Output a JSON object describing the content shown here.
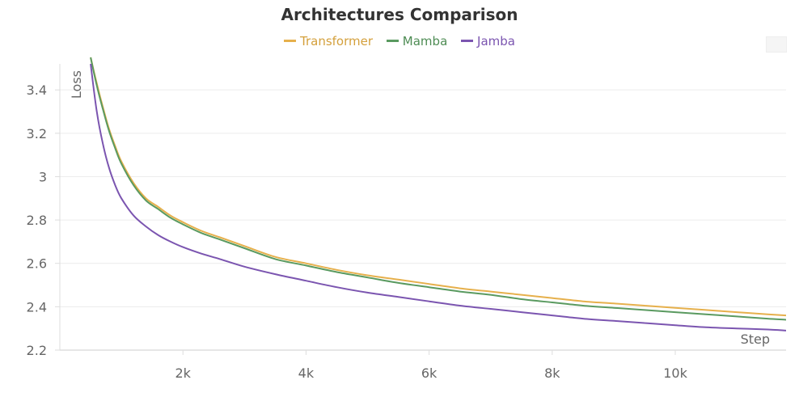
{
  "chart_data": {
    "type": "line",
    "title": "Architectures Comparison",
    "xlabel": "Step",
    "ylabel": "Loss",
    "xlim": [
      0,
      11800
    ],
    "ylim": [
      2.2,
      3.52
    ],
    "xticks": [
      2000,
      4000,
      6000,
      8000,
      10000
    ],
    "xtick_labels": [
      "2k",
      "4k",
      "6k",
      "8k",
      "10k"
    ],
    "yticks": [
      2.2,
      2.4,
      2.6,
      2.8,
      3.0,
      3.2,
      3.4
    ],
    "ytick_labels": [
      "2.2",
      "2.4",
      "2.6",
      "2.8",
      "3",
      "3.2",
      "3.4"
    ],
    "grid": "horizontal",
    "legend_position": "top-center",
    "x": [
      500,
      600,
      700,
      800,
      900,
      1000,
      1200,
      1400,
      1600,
      1800,
      2000,
      2300,
      2600,
      3000,
      3500,
      4000,
      4500,
      5000,
      5500,
      6000,
      6500,
      7000,
      7500,
      8000,
      8500,
      9000,
      9500,
      10000,
      10500,
      11000,
      11500,
      11800
    ],
    "series": [
      {
        "name": "Transformer",
        "color": "#e6b04c",
        "values": [
          3.55,
          3.43,
          3.32,
          3.22,
          3.14,
          3.07,
          2.97,
          2.9,
          2.86,
          2.82,
          2.79,
          2.75,
          2.72,
          2.68,
          2.63,
          2.6,
          2.57,
          2.545,
          2.525,
          2.505,
          2.485,
          2.47,
          2.455,
          2.44,
          2.425,
          2.415,
          2.405,
          2.395,
          2.385,
          2.375,
          2.365,
          2.36
        ]
      },
      {
        "name": "Mamba",
        "color": "#5a9a60",
        "values": [
          3.55,
          3.42,
          3.31,
          3.21,
          3.13,
          3.06,
          2.96,
          2.89,
          2.85,
          2.81,
          2.78,
          2.74,
          2.71,
          2.67,
          2.62,
          2.59,
          2.56,
          2.535,
          2.51,
          2.49,
          2.47,
          2.455,
          2.435,
          2.42,
          2.405,
          2.395,
          2.385,
          2.375,
          2.365,
          2.355,
          2.345,
          2.34
        ]
      },
      {
        "name": "Jamba",
        "color": "#7b55b0",
        "values": [
          3.52,
          3.3,
          3.15,
          3.04,
          2.96,
          2.9,
          2.82,
          2.77,
          2.73,
          2.7,
          2.675,
          2.645,
          2.62,
          2.585,
          2.55,
          2.52,
          2.49,
          2.465,
          2.445,
          2.425,
          2.405,
          2.39,
          2.375,
          2.36,
          2.345,
          2.335,
          2.325,
          2.315,
          2.305,
          2.3,
          2.295,
          2.29
        ]
      }
    ]
  }
}
